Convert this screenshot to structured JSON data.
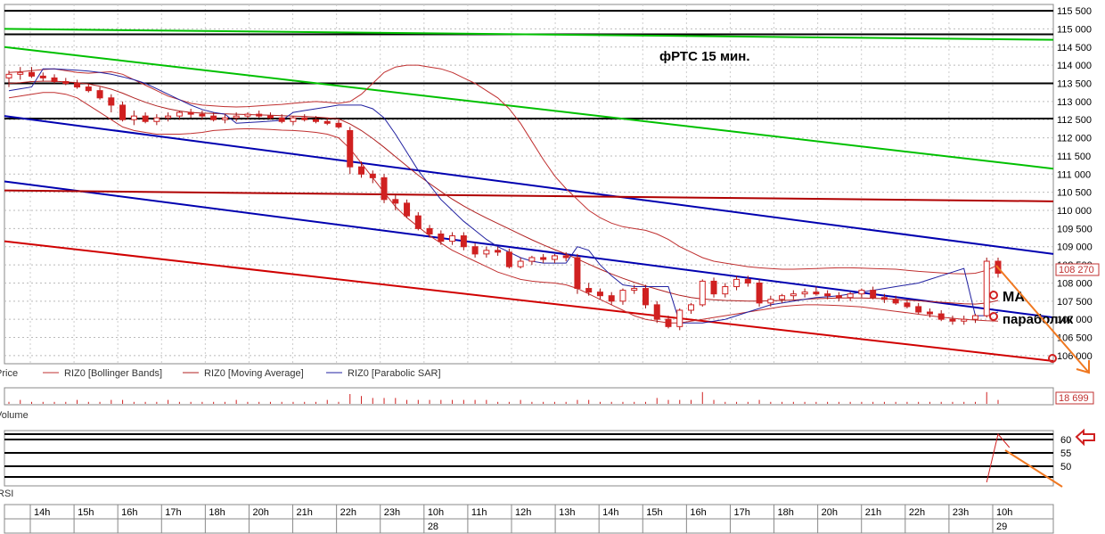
{
  "chart_data": [
    {
      "type": "candlestick",
      "title": "фРТС   15 мин.",
      "pane_label": "Price",
      "y_ticks": [
        106000,
        106500,
        107000,
        107500,
        108000,
        108500,
        109000,
        109500,
        110000,
        110500,
        111000,
        111500,
        112000,
        112500,
        113000,
        113500,
        114000,
        114500,
        115000,
        115500
      ],
      "y_tick_labels": [
        "106 000",
        "106 500",
        "107 000",
        "107 500",
        "108 000",
        "108 500",
        "109 000",
        "109 500",
        "110 000",
        "110 500",
        "111 000",
        "111 500",
        "112 000",
        "112 500",
        "113 000",
        "113 500",
        "114 000",
        "114 500",
        "115 000",
        "115 500"
      ],
      "ylim": [
        105850,
        115600
      ],
      "last_price": "108 270",
      "candles": [
        [
          113650,
          113850,
          113400,
          113750
        ],
        [
          113750,
          113950,
          113600,
          113800
        ],
        [
          113800,
          113950,
          113650,
          113700
        ],
        [
          113700,
          113800,
          113550,
          113650
        ],
        [
          113650,
          113750,
          113500,
          113550
        ],
        [
          113550,
          113650,
          113450,
          113500
        ],
        [
          113500,
          113600,
          113350,
          113400
        ],
        [
          113400,
          113500,
          113250,
          113300
        ],
        [
          113300,
          113400,
          113050,
          113100
        ],
        [
          113100,
          113200,
          112700,
          112900
        ],
        [
          112900,
          113000,
          112450,
          112500
        ],
        [
          112500,
          112750,
          112350,
          112600
        ],
        [
          112600,
          112700,
          112400,
          112450
        ],
        [
          112450,
          112650,
          112350,
          112550
        ],
        [
          112550,
          112700,
          112450,
          112600
        ],
        [
          112600,
          112750,
          112500,
          112700
        ],
        [
          112700,
          112800,
          112550,
          112650
        ],
        [
          112650,
          112750,
          112500,
          112600
        ],
        [
          112600,
          112700,
          112450,
          112500
        ],
        [
          112500,
          112650,
          112400,
          112550
        ],
        [
          112550,
          112700,
          112450,
          112600
        ],
        [
          112600,
          112700,
          112500,
          112650
        ],
        [
          112650,
          112750,
          112550,
          112600
        ],
        [
          112600,
          112700,
          112500,
          112550
        ],
        [
          112550,
          112650,
          112400,
          112450
        ],
        [
          112450,
          112600,
          112350,
          112550
        ],
        [
          112550,
          112650,
          112450,
          112500
        ],
        [
          112500,
          112600,
          112400,
          112450
        ],
        [
          112450,
          112550,
          112350,
          112400
        ],
        [
          112400,
          112500,
          112250,
          112300
        ],
        [
          112200,
          112300,
          111000,
          111200
        ],
        [
          111200,
          111350,
          110900,
          111000
        ],
        [
          111000,
          111100,
          110750,
          110900
        ],
        [
          110900,
          111000,
          110200,
          110300
        ],
        [
          110300,
          110450,
          110000,
          110200
        ],
        [
          110200,
          110300,
          109800,
          109850
        ],
        [
          109850,
          109950,
          109450,
          109500
        ],
        [
          109500,
          109600,
          109250,
          109350
        ],
        [
          109350,
          109450,
          109050,
          109150
        ],
        [
          109150,
          109400,
          109050,
          109300
        ],
        [
          109300,
          109400,
          108900,
          109000
        ],
        [
          109000,
          109100,
          108700,
          108800
        ],
        [
          108800,
          109000,
          108700,
          108900
        ],
        [
          108900,
          109000,
          108750,
          108850
        ],
        [
          108850,
          108950,
          108400,
          108450
        ],
        [
          108450,
          108700,
          108400,
          108600
        ],
        [
          108600,
          108750,
          108500,
          108700
        ],
        [
          108700,
          108800,
          108550,
          108650
        ],
        [
          108650,
          108800,
          108550,
          108750
        ],
        [
          108750,
          108850,
          108600,
          108700
        ],
        [
          108700,
          108800,
          107700,
          107850
        ],
        [
          107850,
          108000,
          107650,
          107750
        ],
        [
          107750,
          107850,
          107550,
          107650
        ],
        [
          107650,
          107750,
          107400,
          107500
        ],
        [
          107500,
          107850,
          107400,
          107800
        ],
        [
          107800,
          107950,
          107700,
          107850
        ],
        [
          107850,
          107950,
          107300,
          107400
        ],
        [
          107400,
          107500,
          106900,
          107000
        ],
        [
          107000,
          107100,
          106750,
          106800
        ],
        [
          106800,
          107300,
          106700,
          107250
        ],
        [
          107250,
          107450,
          107150,
          107400
        ],
        [
          107400,
          108100,
          107350,
          108050
        ],
        [
          108050,
          108150,
          107600,
          107700
        ],
        [
          107700,
          108000,
          107600,
          107900
        ],
        [
          107900,
          108200,
          107800,
          108100
        ],
        [
          108100,
          108200,
          107900,
          108000
        ],
        [
          108000,
          108100,
          107350,
          107450
        ],
        [
          107450,
          107650,
          107350,
          107550
        ],
        [
          107550,
          107700,
          107450,
          107650
        ],
        [
          107650,
          107800,
          107550,
          107700
        ],
        [
          107700,
          107850,
          107600,
          107750
        ],
        [
          107750,
          107900,
          107650,
          107700
        ],
        [
          107700,
          107800,
          107550,
          107650
        ],
        [
          107650,
          107750,
          107500,
          107600
        ],
        [
          107600,
          107750,
          107500,
          107700
        ],
        [
          107700,
          107850,
          107600,
          107800
        ],
        [
          107800,
          107900,
          107550,
          107600
        ],
        [
          107600,
          107700,
          107450,
          107550
        ],
        [
          107550,
          107650,
          107400,
          107450
        ],
        [
          107450,
          107550,
          107300,
          107350
        ],
        [
          107350,
          107450,
          107150,
          107200
        ],
        [
          107200,
          107300,
          107050,
          107150
        ],
        [
          107150,
          107250,
          106950,
          107000
        ],
        [
          107000,
          107100,
          106850,
          106950
        ],
        [
          106950,
          107100,
          106850,
          107000
        ],
        [
          107000,
          107150,
          106900,
          107100
        ],
        [
          107100,
          108700,
          107050,
          108600
        ],
        [
          108600,
          108700,
          108150,
          108270
        ]
      ],
      "series": [
        {
          "name": "RIZ0 [Bollinger Bands]",
          "color": "#c03030",
          "upper": [
            113800,
            113820,
            113850,
            113880,
            113900,
            113850,
            113800,
            113780,
            113800,
            113820,
            113750,
            113600,
            113450,
            113300,
            113150,
            113050,
            112950,
            112900,
            112880,
            112860,
            112850,
            112860,
            112880,
            112900,
            112920,
            112950,
            112980,
            113000,
            112980,
            112950,
            113000,
            113200,
            113500,
            113800,
            113950,
            114000,
            114000,
            113950,
            113900,
            113800,
            113650,
            113500,
            113300,
            113100,
            112800,
            112400,
            111900,
            111400,
            110950,
            110600,
            110300,
            110000,
            109800,
            109650,
            109550,
            109500,
            109450,
            109350,
            109200,
            109000,
            108850,
            108700,
            108600,
            108550,
            108500,
            108450,
            108420,
            108400,
            108380,
            108380,
            108390,
            108400,
            108410,
            108420,
            108420,
            108410,
            108400,
            108390,
            108380,
            108350,
            108320,
            108300,
            108280,
            108260,
            108250,
            108270,
            108350,
            108500
          ],
          "lower": [
            113100,
            113150,
            113200,
            113250,
            113250,
            113200,
            113100,
            112900,
            112700,
            112500,
            112300,
            112200,
            112150,
            112100,
            112100,
            112100,
            112120,
            112150,
            112200,
            112220,
            112240,
            112250,
            112240,
            112230,
            112210,
            112200,
            112180,
            112150,
            112100,
            112000,
            111700,
            111300,
            110900,
            110500,
            110100,
            109800,
            109550,
            109300,
            109100,
            108900,
            108750,
            108600,
            108450,
            108300,
            108200,
            108100,
            108050,
            108020,
            108000,
            107950,
            107850,
            107700,
            107550,
            107400,
            107250,
            107100,
            107000,
            106950,
            106900,
            106900,
            106950,
            107000,
            107050,
            107100,
            107150,
            107200,
            107250,
            107300,
            107350,
            107380,
            107400,
            107400,
            107390,
            107380,
            107360,
            107340,
            107300,
            107260,
            107220,
            107180,
            107140,
            107100,
            107060,
            107030,
            107000,
            106980,
            106960,
            106950
          ]
        },
        {
          "name": "RIZ0 [Moving Average]",
          "color": "#b02020",
          "values": [
            113500,
            113520,
            113550,
            113560,
            113560,
            113540,
            113520,
            113480,
            113420,
            113340,
            113230,
            113100,
            112980,
            112880,
            112800,
            112740,
            112700,
            112680,
            112670,
            112660,
            112650,
            112640,
            112630,
            112620,
            112610,
            112600,
            112590,
            112570,
            112550,
            112520,
            112380,
            112200,
            111980,
            111740,
            111480,
            111220,
            110970,
            110740,
            110520,
            110310,
            110120,
            109950,
            109790,
            109640,
            109490,
            109340,
            109190,
            109050,
            108920,
            108800,
            108660,
            108520,
            108380,
            108250,
            108130,
            108020,
            107920,
            107830,
            107740,
            107660,
            107600,
            107560,
            107540,
            107520,
            107510,
            107500,
            107500,
            107510,
            107520,
            107530,
            107550,
            107570,
            107580,
            107590,
            107590,
            107590,
            107580,
            107570,
            107550,
            107530,
            107510,
            107490,
            107470,
            107450,
            107430,
            107420,
            107450,
            107520
          ]
        },
        {
          "name": "RIZ0 [Parabolic SAR]",
          "color": "#2020a0",
          "values": [
            113300,
            113350,
            113400,
            113900,
            113900,
            113880,
            113860,
            113840,
            113800,
            113750,
            113680,
            113600,
            113500,
            113350,
            113200,
            113050,
            112900,
            112780,
            112700,
            112650,
            112400,
            112420,
            112440,
            112460,
            112480,
            112700,
            112750,
            112800,
            112850,
            112900,
            112900,
            112900,
            112800,
            112550,
            112100,
            111600,
            111100,
            110700,
            110300,
            110000,
            109700,
            109450,
            109200,
            109000,
            108850,
            108700,
            108600,
            108550,
            108550,
            108550,
            109000,
            108900,
            108500,
            108200,
            107950,
            107900,
            107900,
            107900,
            107900,
            106900,
            106900,
            106900,
            106950,
            107000,
            107100,
            107200,
            107300,
            107400,
            107450,
            107500,
            107550,
            107600,
            107620,
            107650,
            107700,
            107750,
            107800,
            107850,
            107900,
            107950,
            108000,
            108100,
            108200,
            108300,
            108400,
            107100,
            107100,
            107200
          ]
        }
      ],
      "trend_lines": [
        {
          "color": "#00c000",
          "from": 114500,
          "to": 111150
        },
        {
          "color": "#00c000",
          "from": 115000,
          "to": 114700
        },
        {
          "color": "#0000b0",
          "from": 112600,
          "to": 108800
        },
        {
          "color": "#0000b0",
          "from": 110800,
          "to": 107050
        },
        {
          "color": "#d00000",
          "from": 109150,
          "to": 105850
        },
        {
          "color": "#b00000",
          "from": 110550,
          "to": 110250
        }
      ],
      "horizontal_levels": [
        115500,
        114850,
        113500,
        112530
      ],
      "annotations": [
        "MA",
        "параболик"
      ],
      "legend": [
        "Price",
        "RIZ0 [Bollinger Bands]",
        "RIZ0 [Moving Average]",
        "RIZ0 [Parabolic SAR]"
      ]
    },
    {
      "type": "bar",
      "pane_label": "Volume",
      "last_value": "18 699",
      "values": [
        1,
        2,
        1,
        1,
        1,
        1,
        2,
        1,
        1,
        2,
        2,
        1,
        1,
        1,
        2,
        1,
        1,
        1,
        1,
        1,
        2,
        1,
        1,
        1,
        1,
        1,
        1,
        1,
        2,
        1,
        5,
        4,
        3,
        3,
        3,
        2,
        2,
        2,
        2,
        2,
        2,
        2,
        2,
        1,
        1,
        2,
        1,
        1,
        1,
        1,
        2,
        2,
        1,
        1,
        1,
        1,
        1,
        3,
        2,
        2,
        2,
        6,
        2,
        1,
        1,
        1,
        2,
        1,
        1,
        1,
        1,
        1,
        1,
        1,
        1,
        1,
        1,
        1,
        1,
        1,
        1,
        1,
        1,
        1,
        1,
        1,
        6,
        2
      ]
    },
    {
      "type": "line",
      "pane_label": "RSI",
      "y_tick_labels": [
        "60",
        "55",
        "50"
      ],
      "y_ticks": [
        60,
        55,
        50
      ],
      "ylim": [
        43,
        63
      ],
      "levels": [
        62,
        60,
        55,
        50,
        46
      ],
      "points": [
        [
          86,
          44
        ],
        [
          87,
          62
        ],
        [
          88,
          57
        ]
      ]
    }
  ],
  "x_axis": {
    "hour_labels": [
      "14h",
      "15h",
      "16h",
      "17h",
      "18h",
      "20h",
      "21h",
      "22h",
      "23h",
      "10h",
      "11h",
      "12h",
      "13h",
      "14h",
      "15h",
      "16h",
      "17h",
      "18h",
      "20h",
      "21h",
      "22h",
      "23h",
      "10h"
    ],
    "date_labels": [
      "28",
      "29"
    ]
  }
}
